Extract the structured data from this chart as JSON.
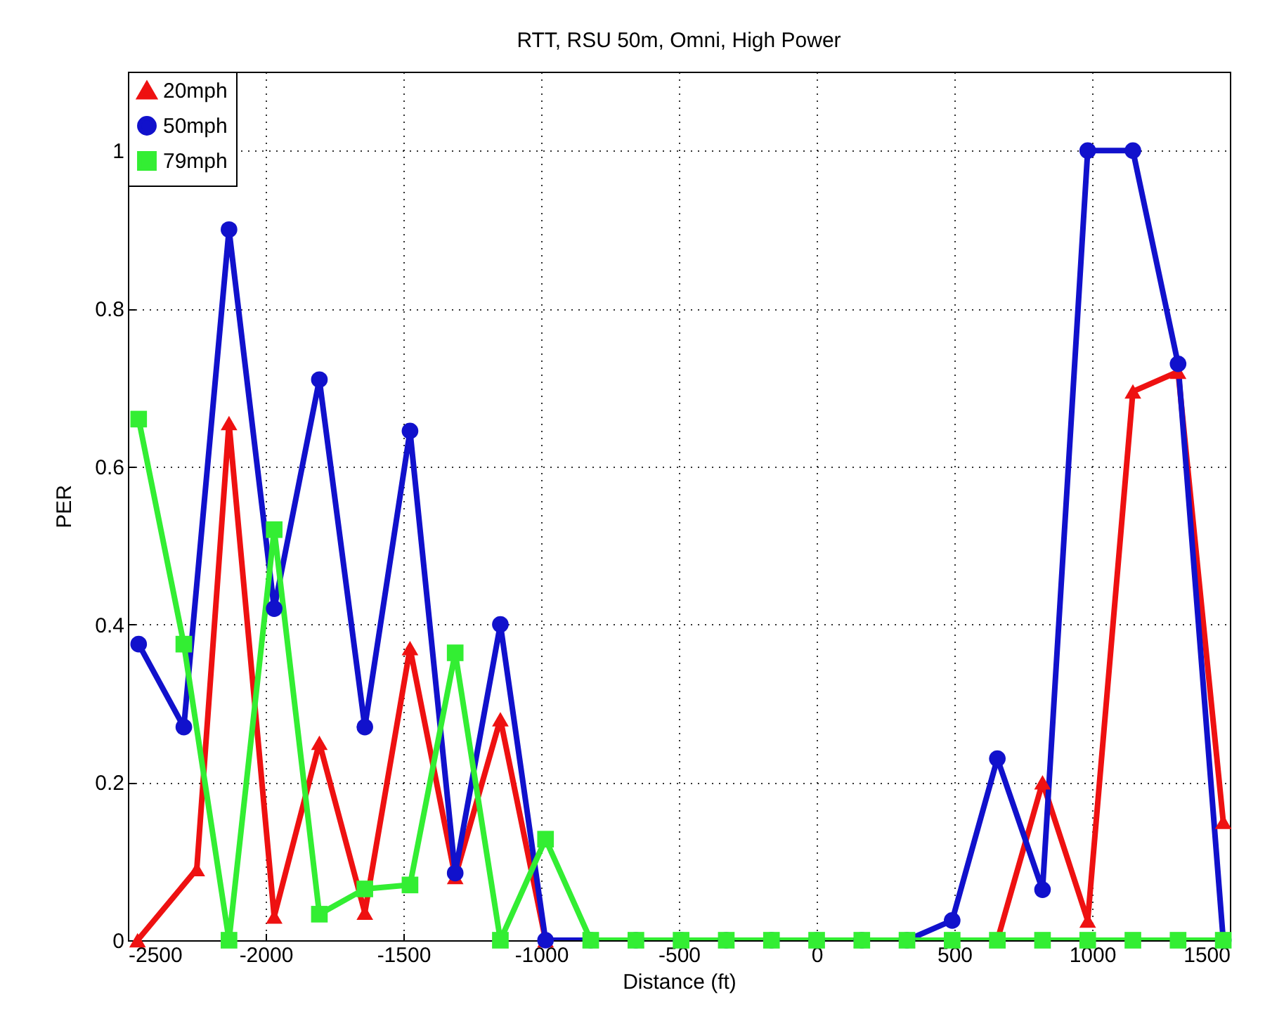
{
  "chart_data": {
    "type": "line",
    "title": "RTT, RSU 50m, Omni, High Power",
    "xlabel": "Distance (ft)",
    "ylabel": "PER",
    "x": [
      -2461,
      -2297,
      -2133,
      -1969,
      -1805,
      -1640,
      -1476,
      -1312,
      -1148,
      -984,
      -820,
      -656,
      -492,
      -328,
      -164,
      0,
      164,
      328,
      492,
      656,
      820,
      984,
      1148,
      1312,
      1476
    ],
    "series": [
      {
        "name": "20mph",
        "color": "#ee1111",
        "marker": "triangle",
        "x": [
          -2465,
          -2250,
          -2133,
          -1969,
          -1805,
          -1640,
          -1476,
          -1312,
          -1148,
          -984,
          -820,
          -656,
          -492,
          -328,
          -164,
          0,
          164,
          328,
          492,
          656,
          820,
          984,
          1148,
          1312,
          1476
        ],
        "values": [
          0,
          0.09,
          0.655,
          0.03,
          0.25,
          0.035,
          0.37,
          0.08,
          0.28,
          0,
          0,
          0,
          0,
          0,
          0,
          0,
          0,
          0,
          0,
          0,
          0.2,
          0.025,
          0.695,
          0.72,
          0.15
        ]
      },
      {
        "name": "50mph",
        "color": "#1111cc",
        "marker": "circle",
        "values": [
          0.375,
          0.27,
          0.9,
          0.42,
          0.71,
          0.27,
          0.645,
          0.085,
          0.4,
          0,
          0,
          0,
          0,
          0,
          0,
          0,
          0,
          0,
          0.025,
          0.23,
          0.064,
          1,
          1,
          0.73,
          0
        ]
      },
      {
        "name": "79mph",
        "color": "#33ee33",
        "marker": "square",
        "values": [
          0.66,
          0.375,
          0,
          0.52,
          0.033,
          0.065,
          0.07,
          0.364,
          0,
          0.128,
          0,
          0,
          0,
          0,
          0,
          0,
          0,
          0,
          0,
          0,
          0,
          0,
          0,
          0,
          0
        ]
      }
    ],
    "xlim": [
      -2500,
      1500
    ],
    "xticks": [
      -2500,
      -2000,
      -1500,
      -1000,
      -500,
      0,
      500,
      1000,
      1500
    ],
    "ylim": [
      0,
      1.1
    ],
    "yticks": [
      0,
      0.2,
      0.4,
      0.6,
      0.8,
      1
    ],
    "grid": true,
    "legend": "top left",
    "line_style": "solid"
  }
}
